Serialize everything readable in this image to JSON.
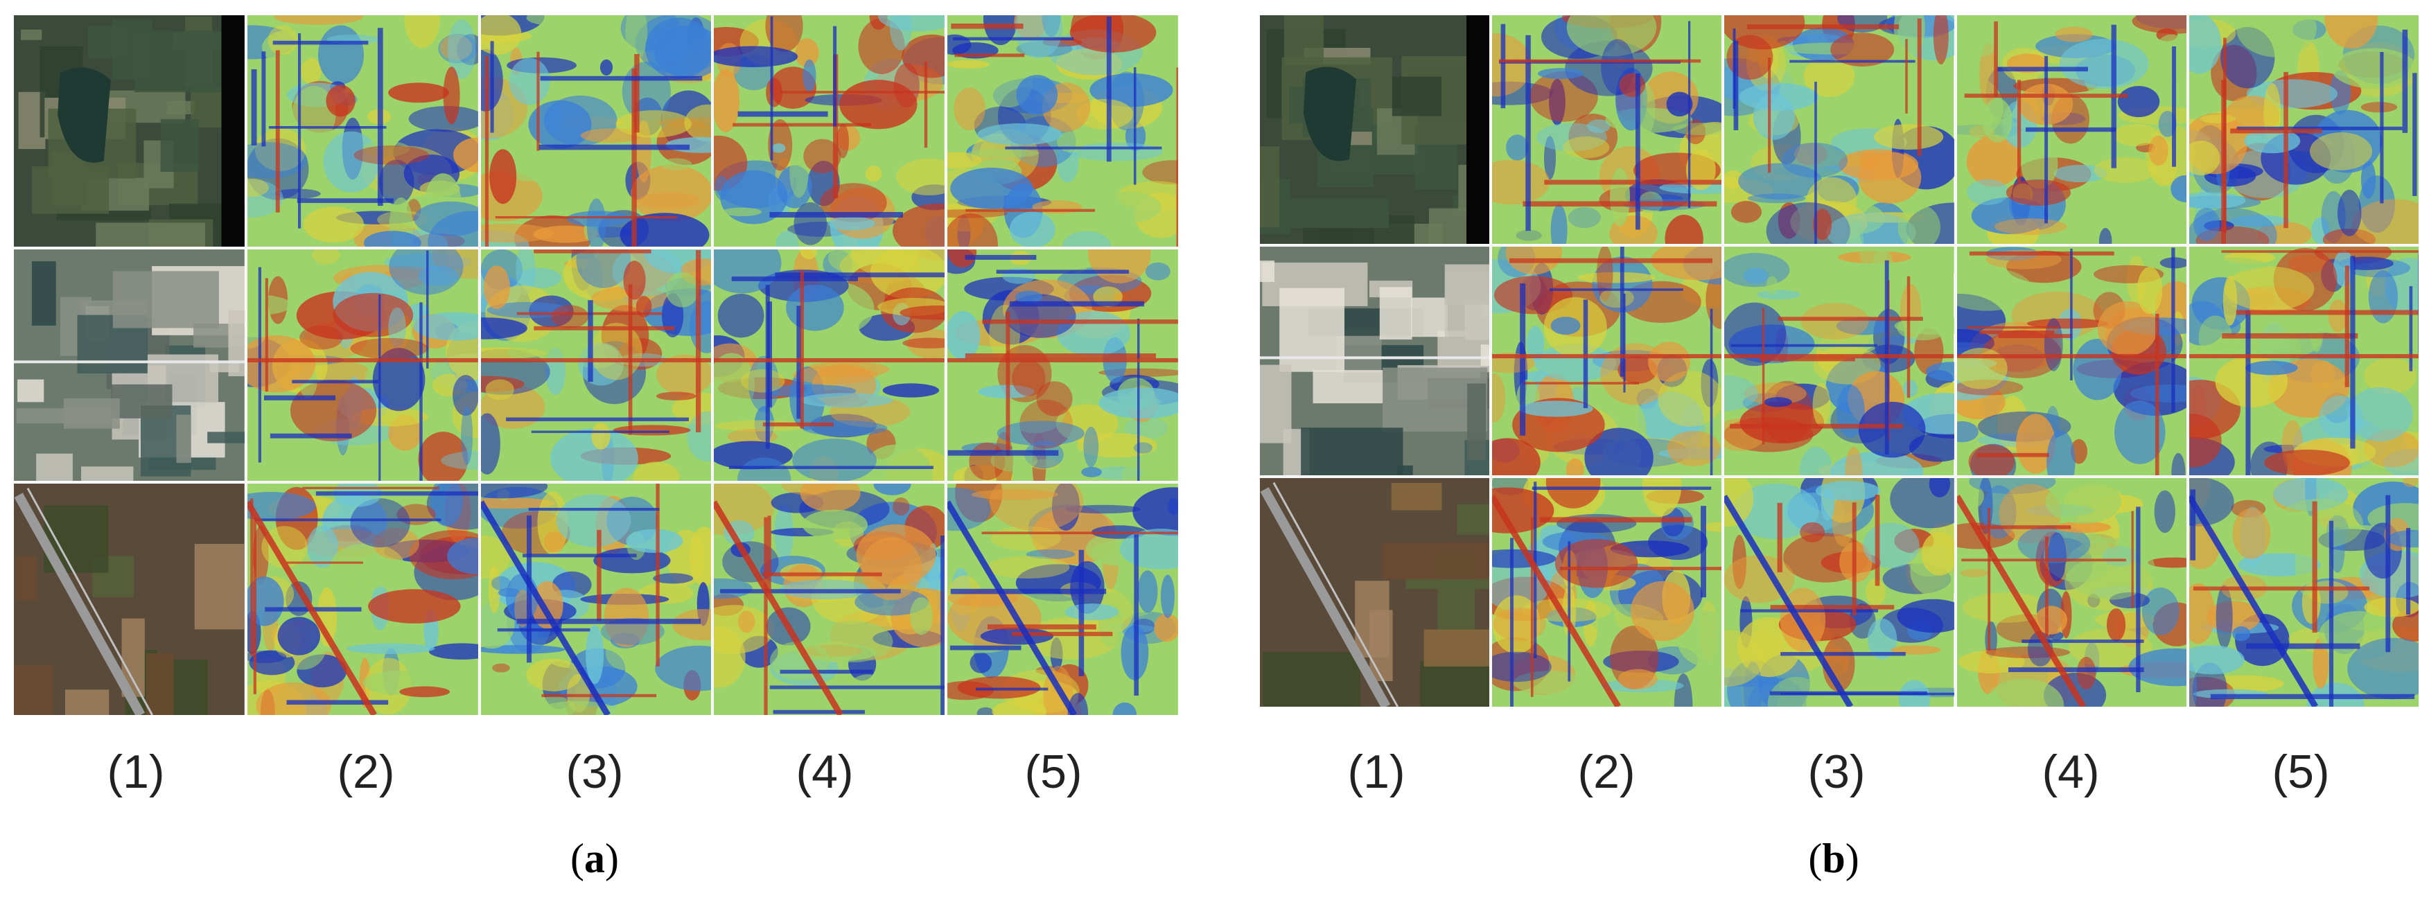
{
  "figure": {
    "panels": [
      {
        "id": "a",
        "caption_open": "(",
        "caption_letter": "a",
        "caption_close": ")",
        "column_labels": [
          "(1)",
          "(2)",
          "(3)",
          "(4)",
          "(5)"
        ]
      },
      {
        "id": "b",
        "caption_open": "(",
        "caption_letter": "b",
        "caption_close": ")",
        "column_labels": [
          "(1)",
          "(2)",
          "(3)",
          "(4)",
          "(5)"
        ]
      }
    ],
    "rows": 3,
    "columns": 5,
    "column_kinds": [
      "satellite-image",
      "attention-heatmap",
      "attention-heatmap",
      "attention-heatmap",
      "attention-heatmap"
    ],
    "colormap": [
      "#1a2fbf",
      "#3a7fd8",
      "#6cc6d8",
      "#9cd36a",
      "#d8d23e",
      "#e89a3a",
      "#c8341f"
    ]
  }
}
